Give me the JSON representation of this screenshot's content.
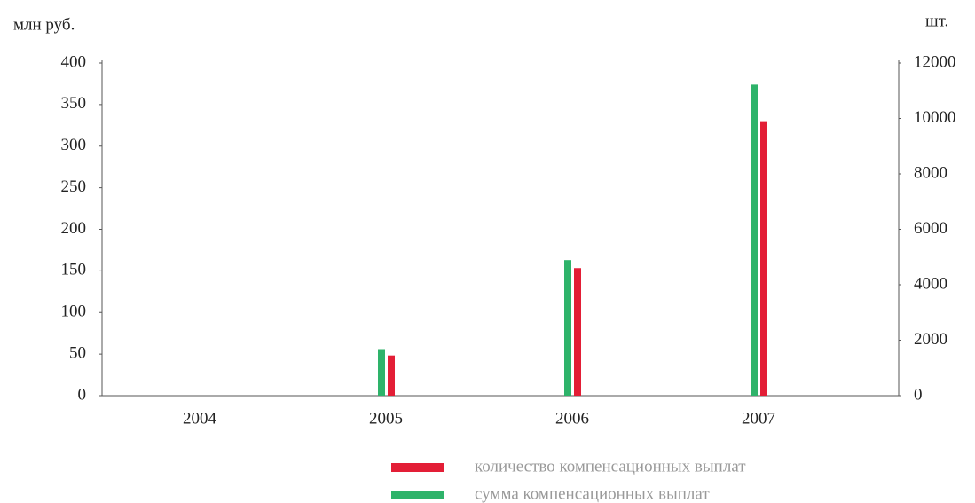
{
  "chart_data": {
    "type": "bar",
    "y_label": "млн руб.",
    "y2_label": "шт.",
    "categories": [
      "2004",
      "2005",
      "2006",
      "2007"
    ],
    "series": [
      {
        "name": "количество компенсационных выплат",
        "color": "#e31e36",
        "axis": "y2",
        "values": [
          null,
          1450,
          4600,
          9900
        ]
      },
      {
        "name": "сумма компенсационных выплат",
        "color": "#2eb36a",
        "axis": "y",
        "values": [
          null,
          56,
          163,
          374
        ]
      }
    ],
    "ylim": [
      0,
      400
    ],
    "yticks": [
      0,
      50,
      100,
      150,
      200,
      250,
      300,
      350,
      400
    ],
    "y2lim": [
      0,
      12000
    ],
    "y2ticks": [
      0,
      2000,
      4000,
      6000,
      8000,
      10000,
      12000
    ],
    "grid": false
  }
}
